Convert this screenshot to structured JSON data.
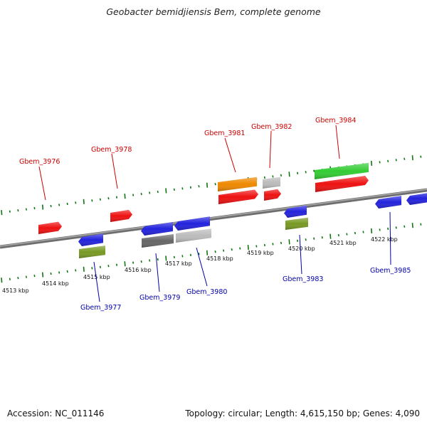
{
  "title": "Geobacter bemidjiensis Bem, complete genome",
  "footer": {
    "accession": "Accession: NC_011146",
    "topology": "Topology: circular; Length: 4,615,150 bp; Genes: 4,090"
  },
  "colors": {
    "red": "#ee1111",
    "blue": "#2222dd",
    "orange": "#ee8800",
    "green": "#33cc33",
    "olive": "#779922",
    "dark_gray": "#666666",
    "light_gray": "#bbbbbb",
    "backbone": "#888888",
    "tick": "#117711",
    "label_top": "#cc0000",
    "label_bottom": "#0000aa"
  },
  "ticks": [
    "4513 kbp",
    "4514 kbp",
    "4515 kbp",
    "4516 kbp",
    "4517 kbp",
    "4518 kbp",
    "4519 kbp",
    "4520 kbp",
    "4521 kbp",
    "4522 kbp"
  ],
  "genes_top": [
    {
      "label": "Gbem_3976"
    },
    {
      "label": "Gbem_3978"
    },
    {
      "label": "Gbem_3981"
    },
    {
      "label": "Gbem_3982"
    },
    {
      "label": "Gbem_3984"
    }
  ],
  "genes_bottom": [
    {
      "label": "Gbem_3977"
    },
    {
      "label": "Gbem_3979"
    },
    {
      "label": "Gbem_3980"
    },
    {
      "label": "Gbem_3983"
    },
    {
      "label": "Gbem_3985"
    }
  ]
}
